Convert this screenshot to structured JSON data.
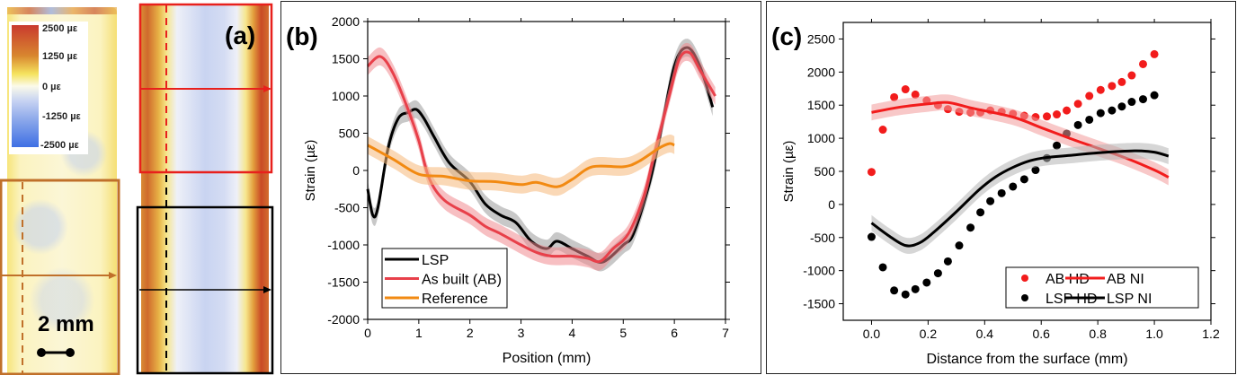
{
  "panel_a": {
    "label": "(a)",
    "colorbar_labels": [
      "2500 µε",
      "1250 µε",
      "0 µε",
      "-1250 µε",
      "-2500 µε"
    ],
    "scale_bar_label": "2 mm",
    "colors": {
      "red_box": "#e8201c",
      "orange_box": "#c0702a",
      "black_box": "#000000"
    }
  },
  "chart_data": [
    {
      "panel_label": "(b)",
      "type": "line",
      "xlabel": "Position (mm)",
      "ylabel": "Strain (µε)",
      "xlim": [
        0,
        7
      ],
      "ylim": [
        -2000,
        2000
      ],
      "xticks": [
        0,
        1,
        2,
        3,
        4,
        5,
        6,
        7
      ],
      "yticks": [
        -2000,
        -1500,
        -1000,
        -500,
        0,
        500,
        1000,
        1500,
        2000
      ],
      "grid": false,
      "legend": "bottom-left",
      "series": [
        {
          "name": "LSP",
          "color": "#000000",
          "band": "#9a9a9a",
          "x": [
            0,
            0.1,
            0.2,
            0.4,
            0.6,
            0.8,
            0.95,
            1.1,
            1.3,
            1.6,
            2.0,
            2.3,
            2.6,
            2.9,
            3.2,
            3.5,
            3.7,
            4.0,
            4.3,
            4.6,
            5.0,
            5.2,
            5.5,
            5.7,
            6.0,
            6.25,
            6.5,
            6.75
          ],
          "y": [
            -250,
            -600,
            -500,
            300,
            700,
            780,
            820,
            700,
            450,
            100,
            -150,
            -450,
            -600,
            -700,
            -950,
            -1050,
            -950,
            -1050,
            -1150,
            -1230,
            -1000,
            -850,
            -200,
            400,
            1400,
            1650,
            1400,
            850
          ]
        },
        {
          "name": "As built (AB)",
          "color": "#e8404a",
          "band": "#f08a90",
          "x": [
            0,
            0.25,
            0.5,
            0.8,
            1.0,
            1.2,
            1.5,
            2.0,
            2.3,
            2.6,
            3.0,
            3.3,
            3.6,
            4.0,
            4.3,
            4.55,
            4.8,
            5.1,
            5.4,
            5.6,
            5.9,
            6.1,
            6.3,
            6.5,
            6.8
          ],
          "y": [
            1400,
            1530,
            1300,
            800,
            400,
            -100,
            -400,
            -600,
            -750,
            -850,
            -1000,
            -1100,
            -1150,
            -1150,
            -1180,
            -1220,
            -1050,
            -850,
            -350,
            200,
            1000,
            1500,
            1580,
            1350,
            1000
          ]
        },
        {
          "name": "Reference",
          "color": "#f28a12",
          "band": "#f6b87a",
          "x": [
            0,
            0.5,
            1.0,
            1.5,
            2.0,
            2.5,
            3.0,
            3.3,
            3.7,
            4.0,
            4.4,
            5.0,
            5.3,
            5.7,
            5.9,
            6.0
          ],
          "y": [
            340,
            150,
            -50,
            -80,
            -140,
            -150,
            -190,
            -160,
            -220,
            -120,
            50,
            50,
            120,
            300,
            360,
            340
          ]
        }
      ]
    },
    {
      "panel_label": "(c)",
      "type": "scatter",
      "xlabel": "Distance from the surface (mm)",
      "ylabel": "Strain (µε)",
      "xlim": [
        -0.1,
        1.2
      ],
      "ylim": [
        -1750,
        2750
      ],
      "xticks": [
        "0.0",
        "0.2",
        "0.4",
        "0.6",
        "0.8",
        "1.0",
        "1.2"
      ],
      "yticks": [
        -1500,
        -1000,
        -500,
        0,
        500,
        1000,
        1500,
        2000,
        2500
      ],
      "grid": false,
      "legend": "bottom-right",
      "series": [
        {
          "name": "AB HD",
          "kind": "points",
          "color": "#f21c1c",
          "x": [
            0,
            0.04,
            0.08,
            0.12,
            0.155,
            0.195,
            0.235,
            0.27,
            0.31,
            0.35,
            0.385,
            0.42,
            0.46,
            0.5,
            0.54,
            0.58,
            0.62,
            0.655,
            0.69,
            0.73,
            0.77,
            0.81,
            0.85,
            0.885,
            0.92,
            0.96,
            1.0
          ],
          "y": [
            490,
            1130,
            1620,
            1740,
            1660,
            1570,
            1500,
            1440,
            1400,
            1390,
            1390,
            1420,
            1400,
            1370,
            1340,
            1320,
            1330,
            1360,
            1420,
            1520,
            1640,
            1730,
            1790,
            1850,
            1950,
            2120,
            2270
          ]
        },
        {
          "name": "LSP HD",
          "kind": "points",
          "color": "#000000",
          "x": [
            0,
            0.04,
            0.08,
            0.12,
            0.155,
            0.195,
            0.235,
            0.27,
            0.31,
            0.35,
            0.385,
            0.42,
            0.46,
            0.5,
            0.54,
            0.58,
            0.62,
            0.655,
            0.69,
            0.73,
            0.77,
            0.81,
            0.85,
            0.885,
            0.92,
            0.96,
            1.0
          ],
          "y": [
            -490,
            -950,
            -1300,
            -1360,
            -1280,
            -1180,
            -1040,
            -860,
            -620,
            -350,
            -120,
            50,
            170,
            270,
            380,
            520,
            700,
            890,
            1070,
            1200,
            1280,
            1380,
            1420,
            1480,
            1550,
            1590,
            1650
          ]
        },
        {
          "name": "AB NI",
          "kind": "line",
          "color": "#f21c1c",
          "band": "#f39a9a",
          "x": [
            0,
            0.1,
            0.2,
            0.27,
            0.35,
            0.5,
            0.6,
            0.7,
            0.8,
            0.9,
            1.0,
            1.05
          ],
          "y": [
            1390,
            1470,
            1520,
            1540,
            1460,
            1320,
            1160,
            1000,
            850,
            700,
            520,
            410
          ]
        },
        {
          "name": "LSP NI",
          "kind": "line",
          "color": "#000000",
          "band": "#b5b5b5",
          "x": [
            0,
            0.06,
            0.12,
            0.17,
            0.22,
            0.3,
            0.38,
            0.44,
            0.5,
            0.56,
            0.62,
            0.7,
            0.8,
            0.93,
            1.0,
            1.05
          ],
          "y": [
            -280,
            -470,
            -620,
            -580,
            -420,
            -110,
            220,
            420,
            560,
            660,
            710,
            740,
            780,
            810,
            790,
            730
          ]
        }
      ]
    }
  ]
}
